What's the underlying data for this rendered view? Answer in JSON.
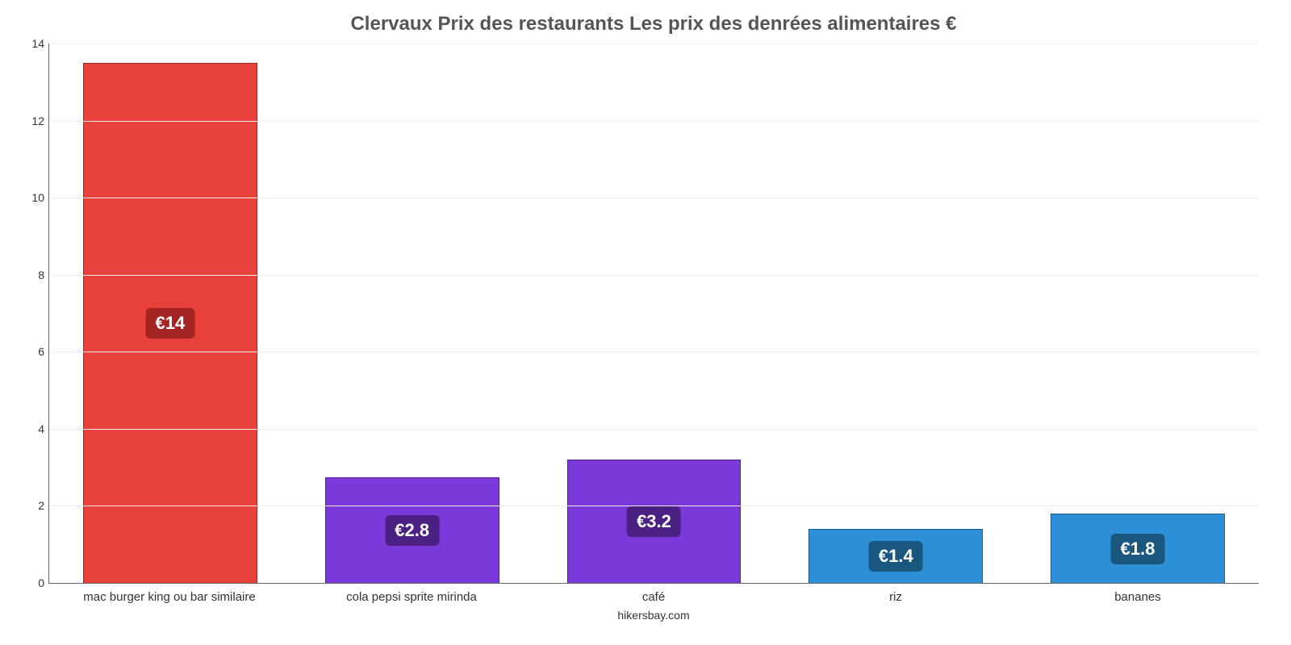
{
  "chart": {
    "type": "bar",
    "title": "Clervaux Prix des restaurants Les prix des denrées alimentaires €",
    "title_fontsize": 24,
    "title_color": "#555555",
    "credit": "hikersbay.com",
    "background_color": "#ffffff",
    "grid_color": "#eeeeee",
    "axis_color": "#666666",
    "tick_color": "#333333",
    "label_fontsize": 15,
    "value_fontsize": 22,
    "ylim": [
      0,
      14
    ],
    "ytick_step": 2,
    "bar_width": 0.72,
    "categories": [
      "mac burger king ou bar similaire",
      "cola pepsi sprite mirinda",
      "café",
      "riz",
      "bananes"
    ],
    "values": [
      13.5,
      2.75,
      3.2,
      1.4,
      1.8
    ],
    "value_labels": [
      "€14",
      "€2.8",
      "€3.2",
      "€1.4",
      "€1.8"
    ],
    "bar_colors": [
      "#e8413c",
      "#7b39d9",
      "#7b39d9",
      "#2d8fd6",
      "#2d8fd6"
    ],
    "badge_colors": [
      "#a52422",
      "#4a2182",
      "#4a2182",
      "#1a577f",
      "#1a577f"
    ],
    "badge_text_color": "#ffffff"
  }
}
